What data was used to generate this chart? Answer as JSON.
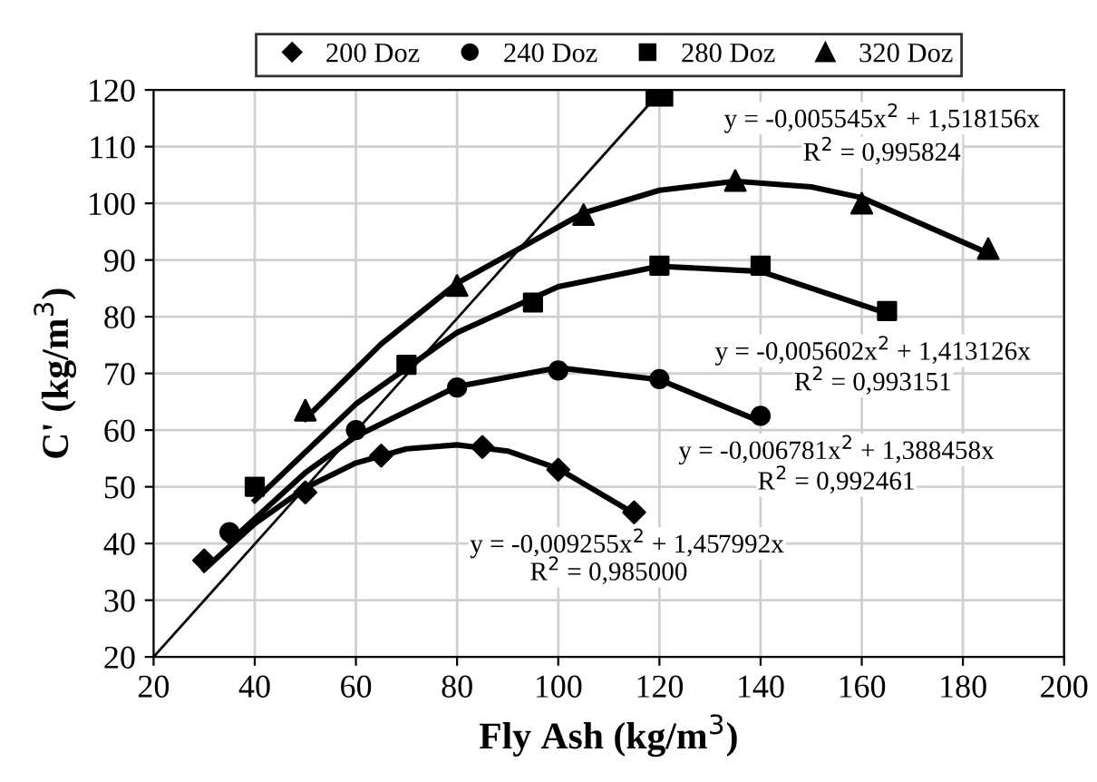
{
  "chart_data": {
    "type": "scatter",
    "xlabel": "Fly Ash (kg/m$^{3}$)",
    "ylabel": "C' (kg/m$^{3}$)",
    "xlim": [
      20,
      200
    ],
    "xticks": [
      20,
      40,
      60,
      80,
      100,
      120,
      140,
      160,
      180,
      200
    ],
    "ylim": [
      20,
      120
    ],
    "yticks": [
      20,
      30,
      40,
      50,
      60,
      70,
      80,
      90,
      100,
      110,
      120
    ],
    "grid": true,
    "legend": "top",
    "series": [
      {
        "name": "200 Doz",
        "marker": "diamond",
        "color": "#000000",
        "x": [
          30,
          50,
          65,
          85,
          100,
          115
        ],
        "values": [
          37,
          49,
          55.5,
          57,
          53,
          45.5
        ]
      },
      {
        "name": "240 Doz",
        "marker": "circle",
        "color": "#000000",
        "x": [
          35,
          60,
          80,
          100,
          120,
          140
        ],
        "values": [
          42,
          60,
          67.5,
          70.5,
          69,
          62.5
        ]
      },
      {
        "name": "280 Doz",
        "marker": "square",
        "color": "#000000",
        "x": [
          40,
          70,
          95,
          120,
          140,
          165
        ],
        "values": [
          50,
          71.5,
          82.5,
          89,
          89,
          81
        ]
      },
      {
        "name": "320 Doz",
        "marker": "triangle",
        "color": "#000000",
        "x": [
          50,
          80,
          105,
          135,
          160,
          185
        ],
        "values": [
          63.5,
          85.5,
          98,
          104,
          100,
          92
        ]
      },
      {
        "type": "line",
        "marker": "none",
        "color": "#000000",
        "x": [
          30,
          40,
          50,
          60,
          70,
          80,
          90,
          100,
          115
        ],
        "values": [
          35.4,
          43.5,
          49.8,
          54.2,
          56.7,
          57.4,
          56.3,
          53.2,
          45.3
        ]
      },
      {
        "type": "line",
        "marker": "none",
        "color": "#000000",
        "x": [
          35,
          50,
          60,
          80,
          100,
          120,
          140
        ],
        "values": [
          40.3,
          52.5,
          58.9,
          67.7,
          71.0,
          68.9,
          61.5
        ]
      },
      {
        "type": "line",
        "marker": "none",
        "color": "#000000",
        "x": [
          40,
          60,
          80,
          100,
          120,
          140,
          165
        ],
        "values": [
          47.6,
          64.6,
          77.2,
          85.3,
          88.9,
          88.0,
          80.6
        ]
      },
      {
        "type": "line",
        "marker": "none",
        "color": "#000000",
        "x": [
          50,
          65,
          80,
          105,
          120,
          135,
          150,
          160,
          185
        ],
        "values": [
          62.0,
          75.2,
          85.9,
          98.3,
          102.3,
          103.9,
          102.9,
          101.0,
          91.2
        ]
      },
      {
        "type": "line",
        "marker": "square",
        "color": "#000000",
        "x": [
          20,
          120
        ],
        "values": [
          20,
          119.5
        ]
      }
    ],
    "annotations": [
      "y = -0,005545x$^{2}$ + 1,518156x",
      "R$^{2}$ = 0,995824",
      "y = -0,005602x$^{2}$ + 1,413126x",
      "R$^{2}$ = 0,993151",
      "y = -0,006781x$^{2}$ + 1,388458x",
      "R$^{2}$ = 0,992461",
      "y = -0,009255x$^{2}$ + 1,457992x",
      "R$^{2}$ = 0,985000"
    ]
  }
}
